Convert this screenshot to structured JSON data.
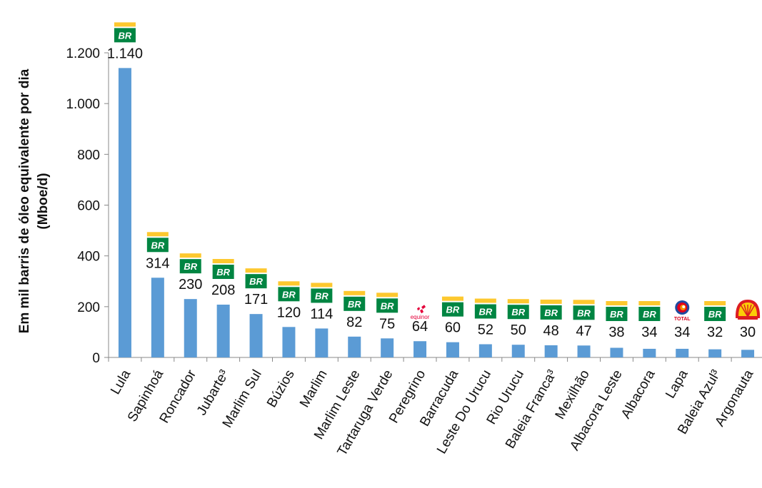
{
  "chart_data": {
    "type": "bar",
    "ylabel_line1": "Em mil barris de óleo equivalente por dia",
    "ylabel_line2": "(Mboe/d)",
    "ylim": [
      0,
      1200
    ],
    "yticks": [
      0,
      200,
      400,
      600,
      800,
      1000,
      1200
    ],
    "ytick_labels": [
      "0",
      "200",
      "400",
      "600",
      "800",
      "1.000",
      "1.200"
    ],
    "grid": false,
    "bar_color": "#5b9bd5",
    "categories": [
      "Lula",
      "Sapinhoá",
      "Roncador",
      "Jubarte³",
      "Marlim Sul",
      "Búzios",
      "Marlim",
      "Marlim Leste",
      "Tartaruga Verde",
      "Peregrino",
      "Barracuda",
      "Leste Do Urucu",
      "Rio Urucu",
      "Baleia Franca³",
      "Mexilhão",
      "Albacora Leste",
      "Albacora",
      "Lapa",
      "Baleia Azul³",
      "Argonauta"
    ],
    "values": [
      1140,
      314,
      230,
      208,
      171,
      120,
      114,
      82,
      75,
      64,
      60,
      52,
      50,
      48,
      47,
      38,
      34,
      34,
      32,
      30
    ],
    "value_labels": [
      "1.140",
      "314",
      "230",
      "208",
      "171",
      "120",
      "114",
      "82",
      "75",
      "64",
      "60",
      "52",
      "50",
      "48",
      "47",
      "38",
      "34",
      "34",
      "32",
      "30"
    ],
    "operators": [
      "petrobras",
      "petrobras",
      "petrobras",
      "petrobras",
      "petrobras",
      "petrobras",
      "petrobras",
      "petrobras",
      "petrobras",
      "equinor",
      "petrobras",
      "petrobras",
      "petrobras",
      "petrobras",
      "petrobras",
      "petrobras",
      "petrobras",
      "total",
      "petrobras",
      "shell"
    ]
  },
  "logos": {
    "petrobras_text": "BR",
    "equinor_text": "equinor",
    "total_text": "TOTAL",
    "colors": {
      "br_green": "#008542",
      "br_yellow": "#fdc82f",
      "equinor_red": "#e4003a",
      "shell_red": "#dd1d21",
      "shell_yellow": "#fbce07",
      "total_blue": "#1f4aa0",
      "total_red": "#e3001b",
      "total_orange": "#f29100"
    }
  }
}
